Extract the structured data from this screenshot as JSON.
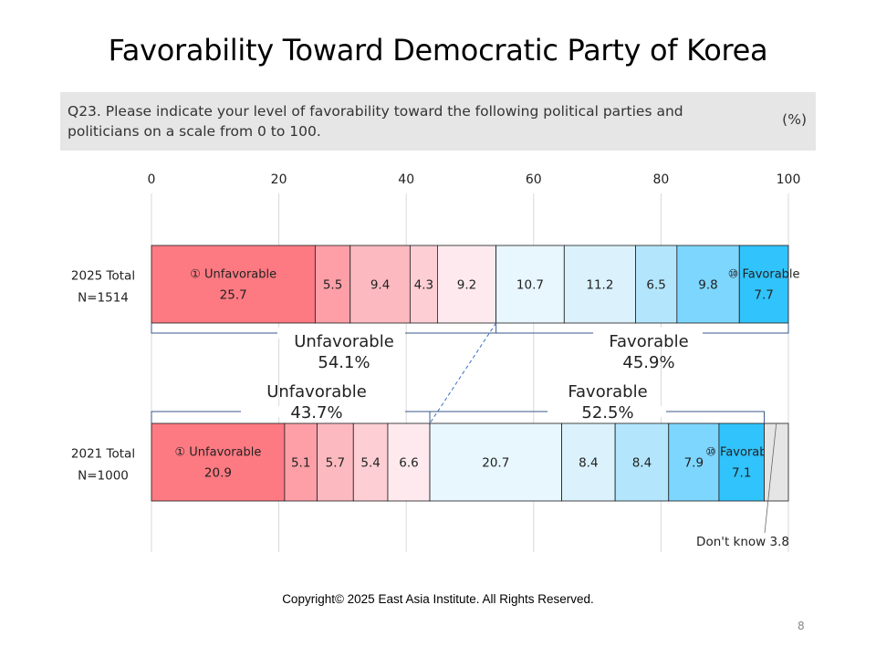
{
  "page": {
    "title": "Favorability Toward Democratic Party of Korea",
    "question": "Q23. Please indicate your level of favorability toward the following political parties and politicians on a scale from 0 to 100.",
    "unit": "(%)",
    "footer": "Copyright© 2025 East Asia Institute. All Rights Reserved.",
    "page_number": "8"
  },
  "chart_data": {
    "type": "bar",
    "orientation": "horizontal",
    "stacked": true,
    "xlim": [
      0,
      100
    ],
    "xticks": [
      "0",
      "20",
      "40",
      "60",
      "80",
      "100"
    ],
    "grid": true,
    "categories": [
      {
        "label": "2025 Total",
        "sublabel": "N=1514"
      },
      {
        "label": "2021 Total",
        "sublabel": "N=1000"
      }
    ],
    "segment_labels": [
      "① Unfavorable",
      "",
      "",
      "",
      "",
      "",
      "",
      "",
      "",
      "⑩ Favorable",
      "Don't know"
    ],
    "series": [
      {
        "values": [
          25.7,
          20.9
        ],
        "color": "#fe7a82",
        "text_color": "#222222"
      },
      {
        "values": [
          5.5,
          5.1
        ],
        "color": "#fe9fa7",
        "text_color": "#222222"
      },
      {
        "values": [
          9.4,
          5.7
        ],
        "color": "#fcbac0",
        "text_color": "#222222"
      },
      {
        "values": [
          4.3,
          5.4
        ],
        "color": "#fdcfd4",
        "text_color": "#222222"
      },
      {
        "values": [
          9.2,
          6.6
        ],
        "color": "#feeaee",
        "text_color": "#222222"
      },
      {
        "values": [
          10.7,
          20.7
        ],
        "color": "#e8f7fe",
        "text_color": "#222222"
      },
      {
        "values": [
          11.2,
          8.4
        ],
        "color": "#dbf2fd",
        "text_color": "#222222"
      },
      {
        "values": [
          6.5,
          8.4
        ],
        "color": "#b3e6fd",
        "text_color": "#222222"
      },
      {
        "values": [
          9.8,
          7.9
        ],
        "color": "#7dd6fd",
        "text_color": "#222222"
      },
      {
        "values": [
          7.7,
          7.1
        ],
        "color": "#31c3fb",
        "text_color": "#222222"
      },
      {
        "values": [
          0,
          3.8
        ],
        "color": "#e5e5e5",
        "text_color": "#222222"
      }
    ],
    "values_text": [
      [
        "25.7",
        "5.5",
        "9.4",
        "4.3",
        "9.2",
        "10.7",
        "11.2",
        "6.5",
        "9.8",
        "7.7",
        ""
      ],
      [
        "20.9",
        "5.1",
        "5.7",
        "5.4",
        "6.6",
        "20.7",
        "8.4",
        "8.4",
        "7.9",
        "7.1",
        ""
      ]
    ],
    "group_summaries": [
      [
        {
          "label": "Unfavorable",
          "value": "54.1%"
        },
        {
          "label": "Favorable",
          "value": "45.9%"
        }
      ],
      [
        {
          "label": "Unfavorable",
          "value": "43.7%"
        },
        {
          "label": "Favorable",
          "value": "52.5%"
        }
      ]
    ],
    "annotation": "Don't know 3.8",
    "colors": {
      "bracket": "#3a5a8c",
      "connector": "#3a6fc4",
      "bar_border": "#1a1a1a",
      "grid": "#d9d9d9"
    }
  }
}
